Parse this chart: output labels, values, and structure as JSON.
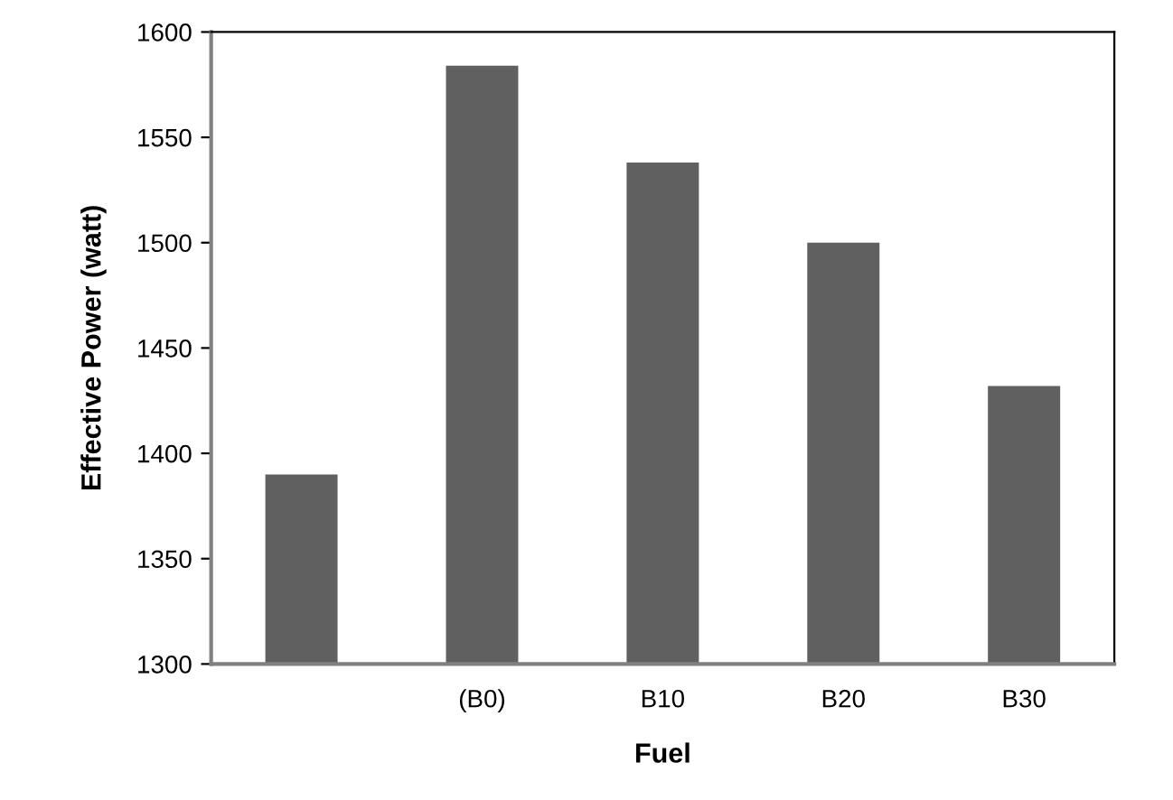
{
  "chart_data": {
    "type": "bar",
    "xlabel": "Fuel",
    "ylabel": "Effective Power (watt)",
    "categories": [
      null,
      "(B0)",
      "B10",
      "B20",
      "B30"
    ],
    "values": [
      1390,
      1584,
      1538,
      1500,
      1432
    ],
    "color": "#606060",
    "ylim": [
      1300,
      1600
    ],
    "yticks": [
      1300,
      1350,
      1400,
      1450,
      1500,
      1550,
      1600
    ],
    "grid": false
  }
}
